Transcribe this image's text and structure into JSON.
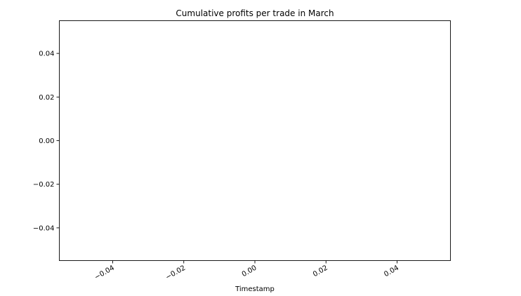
{
  "chart_data": {
    "type": "line",
    "title": "Cumulative profits per trade in March",
    "xlabel": "Timestamp",
    "ylabel": "",
    "xlim": [
      -0.055,
      0.055
    ],
    "ylim": [
      -0.055,
      0.055
    ],
    "xticks": [
      -0.04,
      -0.02,
      0.0,
      0.02,
      0.04
    ],
    "xtick_labels": [
      "−0.04",
      "−0.02",
      "0.00",
      "0.02",
      "0.04"
    ],
    "yticks": [
      0.04,
      0.02,
      0.0,
      -0.02,
      -0.04
    ],
    "ytick_labels": [
      "0.04",
      "0.02",
      "0.00",
      "−0.02",
      "−0.04"
    ],
    "series": [],
    "grid": false,
    "legend": "none",
    "xtick_rotation": "slanted"
  }
}
